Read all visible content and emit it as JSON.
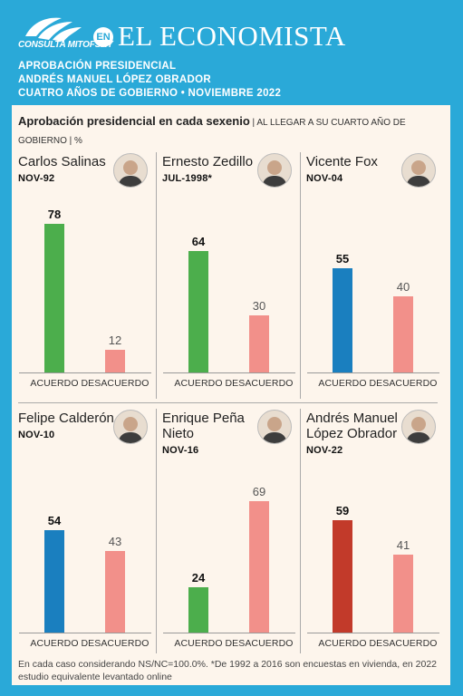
{
  "header": {
    "logo_text": "CONSULTA MITOFSKY",
    "badge": "EN",
    "brand": "EL ECONOMISTA",
    "lines": [
      "APROBACIÓN PRESIDENCIAL",
      "ANDRÉS MANUEL LÓPEZ OBRADOR",
      "CUATRO AÑOS DE GOBIERNO • NOVIEMBRE 2022"
    ]
  },
  "title": {
    "bold": "Aprobación presidencial en cada sexenio",
    "rest": " | AL LLEGAR A SU CUARTO AÑO DE GOBIERNO | %"
  },
  "footnote": "En cada caso considerando NS/NC=100.0%. *De 1992 a 2016 son encuestas en vivienda, en 2022 estudio equivalente levantado online",
  "colors": {
    "green": "#4cae4c",
    "blue": "#1a7fbf",
    "red": "#c23a2a",
    "pink": "#f2908a"
  },
  "chart_data": [
    {
      "type": "bar",
      "name": "Carlos Salinas",
      "date": "NOV-92",
      "categories": [
        "ACUERDO",
        "DESACUERDO"
      ],
      "values": [
        78,
        12
      ],
      "acuerdo_color": "green"
    },
    {
      "type": "bar",
      "name": "Ernesto Zedillo",
      "date": "JUL-1998*",
      "categories": [
        "ACUERDO",
        "DESACUERDO"
      ],
      "values": [
        64,
        30
      ],
      "acuerdo_color": "green"
    },
    {
      "type": "bar",
      "name": "Vicente Fox",
      "date": "NOV-04",
      "categories": [
        "ACUERDO",
        "DESACUERDO"
      ],
      "values": [
        55,
        40
      ],
      "acuerdo_color": "blue"
    },
    {
      "type": "bar",
      "name": "Felipe Calderón",
      "date": "NOV-10",
      "categories": [
        "ACUERDO",
        "DESACUERDO"
      ],
      "values": [
        54,
        43
      ],
      "acuerdo_color": "blue"
    },
    {
      "type": "bar",
      "name": "Enrique Peña Nieto",
      "date": "NOV-16",
      "categories": [
        "ACUERDO",
        "DESACUERDO"
      ],
      "values": [
        24,
        69
      ],
      "acuerdo_color": "green"
    },
    {
      "type": "bar",
      "name": "Andrés Manuel López Obrador",
      "date": "NOV-22",
      "categories": [
        "ACUERDO",
        "DESACUERDO"
      ],
      "values": [
        59,
        41
      ],
      "acuerdo_color": "red"
    }
  ]
}
